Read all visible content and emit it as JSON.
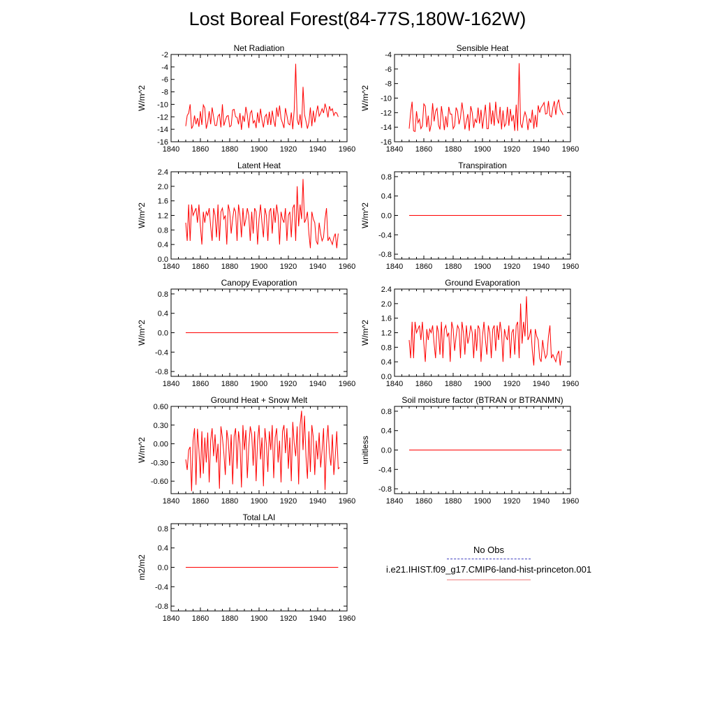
{
  "title": "Lost Boreal Forest(84-77S,180W-162W)",
  "colors": {
    "model": "#ff0000",
    "obs": "#4040c0",
    "model_legend": "#f08080"
  },
  "legend": {
    "obs_label": "No Obs",
    "model_label": "i.e21.IHIST.f09_g17.CMIP6-land-hist-princeton.001"
  },
  "chart_data": [
    {
      "type": "line",
      "title": "Net Radiation",
      "ylabel": "W/m^2",
      "xlim": [
        1840,
        1960
      ],
      "ylim": [
        -16,
        -2
      ],
      "xticks": [
        1840,
        1860,
        1880,
        1900,
        1920,
        1940,
        1960
      ],
      "yticks": [
        -16,
        -14,
        -12,
        -10,
        -8,
        -6,
        -4,
        -2
      ],
      "ytick_labels": [
        "-16",
        "-14",
        "-12",
        "-10",
        "-8",
        "-6",
        "-4",
        "-2"
      ],
      "x_start": 1850,
      "values": [
        -13.5,
        -11.8,
        -11.4,
        -10.0,
        -13.9,
        -13.4,
        -11.8,
        -13.2,
        -12.2,
        -13.6,
        -11.1,
        -13.3,
        -10.1,
        -10.6,
        -13.9,
        -12.9,
        -11.1,
        -13.2,
        -10.5,
        -12.0,
        -13.4,
        -13.4,
        -11.9,
        -11.6,
        -13.7,
        -10.0,
        -13.4,
        -12.6,
        -11.9,
        -11.8,
        -13.6,
        -13.4,
        -10.9,
        -10.8,
        -12.0,
        -12.1,
        -13.2,
        -11.4,
        -14.1,
        -11.8,
        -12.8,
        -10.4,
        -11.7,
        -13.8,
        -11.4,
        -11.0,
        -13.0,
        -12.6,
        -13.8,
        -11.3,
        -13.0,
        -10.7,
        -12.5,
        -13.7,
        -12.0,
        -11.6,
        -13.3,
        -11.2,
        -13.3,
        -11.0,
        -12.6,
        -13.6,
        -10.5,
        -12.0,
        -10.2,
        -12.3,
        -13.0,
        -13.8,
        -10.6,
        -11.8,
        -13.1,
        -13.3,
        -11.3,
        -14.0,
        -10.8,
        -3.5,
        -12.4,
        -13.3,
        -11.6,
        -13.8,
        -7.2,
        -11.6,
        -12.7,
        -13.9,
        -12.9,
        -10.5,
        -13.5,
        -11.0,
        -12.9,
        -11.5,
        -10.2,
        -11.9,
        -11.4,
        -10.7,
        -11.4,
        -9.9,
        -10.8,
        -12.1,
        -10.3,
        -11.0,
        -10.7,
        -11.8,
        -11.3,
        -11.4,
        -12.0
      ]
    },
    {
      "type": "line",
      "title": "Sensible Heat",
      "ylabel": "W/m^2",
      "xlim": [
        1840,
        1960
      ],
      "ylim": [
        -16,
        -4
      ],
      "xticks": [
        1840,
        1860,
        1880,
        1900,
        1920,
        1940,
        1960
      ],
      "yticks": [
        -16,
        -14,
        -12,
        -10,
        -8,
        -6,
        -4
      ],
      "ytick_labels": [
        "-16",
        "-14",
        "-12",
        "-10",
        "-8",
        "-6",
        "-4"
      ],
      "x_start": 1850,
      "values": [
        -14.2,
        -12.0,
        -10.5,
        -14.5,
        -14.6,
        -11.8,
        -13.4,
        -12.9,
        -14.2,
        -13.8,
        -10.8,
        -11.1,
        -14.0,
        -12.4,
        -14.6,
        -13.6,
        -10.7,
        -13.2,
        -11.8,
        -11.4,
        -13.7,
        -14.3,
        -11.1,
        -12.6,
        -14.4,
        -12.5,
        -14.0,
        -11.2,
        -12.2,
        -12.2,
        -14.2,
        -13.8,
        -11.3,
        -11.8,
        -13.6,
        -12.7,
        -10.6,
        -12.1,
        -14.3,
        -13.2,
        -12.2,
        -14.5,
        -11.1,
        -12.0,
        -14.1,
        -12.9,
        -13.4,
        -11.3,
        -13.5,
        -11.6,
        -14.2,
        -12.5,
        -10.9,
        -14.2,
        -14.2,
        -10.6,
        -13.6,
        -11.7,
        -13.8,
        -10.5,
        -12.8,
        -13.5,
        -11.2,
        -14.3,
        -11.7,
        -13.9,
        -13.5,
        -11.2,
        -13.8,
        -11.5,
        -13.2,
        -12.3,
        -14.5,
        -10.9,
        -14.5,
        -5.2,
        -13.5,
        -14.1,
        -12.7,
        -11.9,
        -12.6,
        -14.4,
        -12.8,
        -13.4,
        -11.6,
        -14.2,
        -12.3,
        -14.0,
        -11.0,
        -12.0,
        -11.3,
        -11.0,
        -10.6,
        -12.2,
        -12.1,
        -10.4,
        -12.4,
        -12.6,
        -11.3,
        -10.4,
        -12.3,
        -10.8,
        -10.2,
        -11.6,
        -11.9,
        -12.3
      ]
    },
    {
      "type": "line",
      "title": "Latent Heat",
      "ylabel": "W/m^2",
      "xlim": [
        1840,
        1960
      ],
      "ylim": [
        0,
        2.4
      ],
      "xticks": [
        1840,
        1860,
        1880,
        1900,
        1920,
        1940,
        1960
      ],
      "yticks": [
        0,
        0.4,
        0.8,
        1.2,
        1.6,
        2.0,
        2.4
      ],
      "ytick_labels": [
        "0.0",
        "0.4",
        "0.8",
        "1.2",
        "1.6",
        "2.0",
        "2.4"
      ],
      "x_start": 1850,
      "values": [
        1.0,
        0.5,
        1.5,
        0.5,
        1.5,
        1.2,
        1.3,
        1.4,
        1.0,
        1.5,
        0.9,
        0.4,
        1.3,
        1.0,
        1.3,
        1.2,
        1.4,
        0.9,
        0.5,
        1.4,
        1.2,
        0.6,
        1.5,
        0.5,
        1.3,
        1.4,
        1.1,
        1.2,
        0.4,
        1.5,
        1.3,
        0.7,
        1.1,
        1.4,
        1.3,
        0.5,
        1.5,
        1.2,
        0.6,
        1.4,
        0.9,
        1.1,
        1.4,
        1.2,
        0.5,
        1.3,
        0.7,
        1.4,
        1.3,
        0.4,
        1.1,
        1.5,
        1.0,
        0.6,
        1.4,
        1.2,
        0.5,
        1.3,
        1.4,
        0.7,
        1.4,
        1.0,
        1.5,
        1.2,
        0.4,
        1.3,
        1.1,
        1.0,
        1.4,
        0.5,
        1.2,
        1.3,
        0.6,
        1.4,
        1.5,
        0.5,
        2.0,
        0.9,
        1.5,
        1.1,
        2.2,
        1.0,
        1.1,
        1.3,
        0.7,
        0.3,
        1.3,
        1.1,
        1.0,
        0.5,
        0.4,
        1.0,
        0.7,
        0.5,
        0.6,
        1.1,
        1.4,
        0.5,
        0.6,
        0.5,
        0.4,
        0.6,
        0.7,
        0.3,
        0.7
      ]
    },
    {
      "type": "line",
      "title": "Transpiration",
      "ylabel": "W/m^2",
      "xlim": [
        1840,
        1960
      ],
      "ylim": [
        -0.9,
        0.9
      ],
      "xticks": [
        1840,
        1860,
        1880,
        1900,
        1920,
        1940,
        1960
      ],
      "yticks": [
        -0.8,
        -0.4,
        0,
        0.4,
        0.8
      ],
      "ytick_labels": [
        "-0.8",
        "-0.4",
        "0.0",
        "0.4",
        "0.8"
      ],
      "x": [
        1850,
        1954
      ],
      "values": [
        0,
        0
      ]
    },
    {
      "type": "line",
      "title": "Canopy Evaporation",
      "ylabel": "W/m^2",
      "xlim": [
        1840,
        1960
      ],
      "ylim": [
        -0.9,
        0.9
      ],
      "xticks": [
        1840,
        1860,
        1880,
        1900,
        1920,
        1940,
        1960
      ],
      "yticks": [
        -0.8,
        -0.4,
        0,
        0.4,
        0.8
      ],
      "ytick_labels": [
        "-0.8",
        "-0.4",
        "0.0",
        "0.4",
        "0.8"
      ],
      "x": [
        1850,
        1954
      ],
      "values": [
        0,
        0
      ]
    },
    {
      "type": "line",
      "title": "Ground Evaporation",
      "ylabel": "W/m^2",
      "xlim": [
        1840,
        1960
      ],
      "ylim": [
        0,
        2.4
      ],
      "xticks": [
        1840,
        1860,
        1880,
        1900,
        1920,
        1940,
        1960
      ],
      "yticks": [
        0,
        0.4,
        0.8,
        1.2,
        1.6,
        2.0,
        2.4
      ],
      "ytick_labels": [
        "0.0",
        "0.4",
        "0.8",
        "1.2",
        "1.6",
        "2.0",
        "2.4"
      ],
      "x_start": 1850,
      "values": [
        1.0,
        0.5,
        1.5,
        0.5,
        1.5,
        1.2,
        1.3,
        1.4,
        1.0,
        1.5,
        0.9,
        0.4,
        1.3,
        1.0,
        1.3,
        1.2,
        1.4,
        0.9,
        0.5,
        1.4,
        1.2,
        0.6,
        1.5,
        0.5,
        1.3,
        1.4,
        1.1,
        1.2,
        0.4,
        1.5,
        1.3,
        0.7,
        1.1,
        1.4,
        1.3,
        0.5,
        1.5,
        1.2,
        0.6,
        1.4,
        0.9,
        1.1,
        1.4,
        1.2,
        0.5,
        1.3,
        0.7,
        1.4,
        1.3,
        0.4,
        1.1,
        1.5,
        1.0,
        0.6,
        1.4,
        1.2,
        0.5,
        1.3,
        1.4,
        0.7,
        1.4,
        1.0,
        1.5,
        1.2,
        0.4,
        1.3,
        1.1,
        1.0,
        1.4,
        0.5,
        1.2,
        1.3,
        0.6,
        1.4,
        1.5,
        0.5,
        2.0,
        0.9,
        1.5,
        1.1,
        2.2,
        1.0,
        1.1,
        1.3,
        0.7,
        0.3,
        1.3,
        1.1,
        1.0,
        0.5,
        0.4,
        1.0,
        0.7,
        0.5,
        0.6,
        1.1,
        1.4,
        0.5,
        0.6,
        0.5,
        0.4,
        0.6,
        0.7,
        0.3,
        0.7
      ]
    },
    {
      "type": "line",
      "title": "Ground Heat + Snow Melt",
      "ylabel": "W/m^2",
      "xlim": [
        1840,
        1960
      ],
      "ylim": [
        -0.8,
        0.6
      ],
      "xticks": [
        1840,
        1860,
        1880,
        1900,
        1920,
        1940,
        1960
      ],
      "yticks": [
        -0.6,
        -0.3,
        0,
        0.3,
        0.6
      ],
      "ytick_labels": [
        "-0.60",
        "-0.30",
        "0.00",
        "0.30",
        "0.60"
      ],
      "x_start": 1850,
      "values": [
        -0.25,
        -0.42,
        -0.1,
        -0.05,
        -0.76,
        0.05,
        0.25,
        -0.66,
        0.24,
        -0.1,
        -0.55,
        0.2,
        -0.48,
        0.1,
        -0.3,
        0.18,
        -0.62,
        0.05,
        0.25,
        -0.2,
        0.15,
        -0.3,
        0.0,
        -0.72,
        0.28,
        0.1,
        -0.15,
        -0.5,
        0.22,
        0.05,
        -0.35,
        0.15,
        -0.65,
        0.12,
        0.25,
        -0.4,
        0.2,
        0.0,
        -0.7,
        0.3,
        -0.1,
        0.22,
        -0.55,
        -0.05,
        0.28,
        0.15,
        -0.35,
        0.2,
        -0.6,
        0.05,
        0.3,
        -0.25,
        0.1,
        -0.68,
        0.25,
        0.0,
        -0.45,
        0.2,
        -0.1,
        0.3,
        -0.55,
        0.1,
        0.25,
        -0.3,
        0.05,
        -0.62,
        0.2,
        0.3,
        -0.15,
        0.25,
        -0.4,
        0.1,
        -0.6,
        0.35,
        0.0,
        -0.2,
        0.28,
        -0.65,
        0.3,
        0.53,
        -0.1,
        0.45,
        -0.2,
        -0.56,
        0.2,
        -0.45,
        0.3,
        0.1,
        -0.5,
        0.05,
        -0.25,
        0.18,
        -0.38,
        -0.1,
        0.25,
        -0.74,
        0.0,
        0.3,
        -0.15,
        -0.35,
        0.15,
        -0.5,
        -0.2,
        0.2,
        -0.4,
        -0.38
      ]
    },
    {
      "type": "line",
      "title": "Soil moisture factor (BTRAN or BTRANMN)",
      "ylabel": "unitless",
      "xlim": [
        1840,
        1960
      ],
      "ylim": [
        -0.9,
        0.9
      ],
      "xticks": [
        1840,
        1860,
        1880,
        1900,
        1920,
        1940,
        1960
      ],
      "yticks": [
        -0.8,
        -0.4,
        0,
        0.4,
        0.8
      ],
      "ytick_labels": [
        "-0.8",
        "-0.4",
        "0.0",
        "0.4",
        "0.8"
      ],
      "x": [
        1850,
        1954
      ],
      "values": [
        0,
        0
      ]
    },
    {
      "type": "line",
      "title": "Total LAI",
      "ylabel": "m2/m2",
      "xlim": [
        1840,
        1960
      ],
      "ylim": [
        -0.9,
        0.9
      ],
      "xticks": [
        1840,
        1860,
        1880,
        1900,
        1920,
        1940,
        1960
      ],
      "yticks": [
        -0.8,
        -0.4,
        0,
        0.4,
        0.8
      ],
      "ytick_labels": [
        "-0.8",
        "-0.4",
        "0.0",
        "0.4",
        "0.8"
      ],
      "x": [
        1850,
        1954
      ],
      "values": [
        0,
        0
      ]
    }
  ]
}
